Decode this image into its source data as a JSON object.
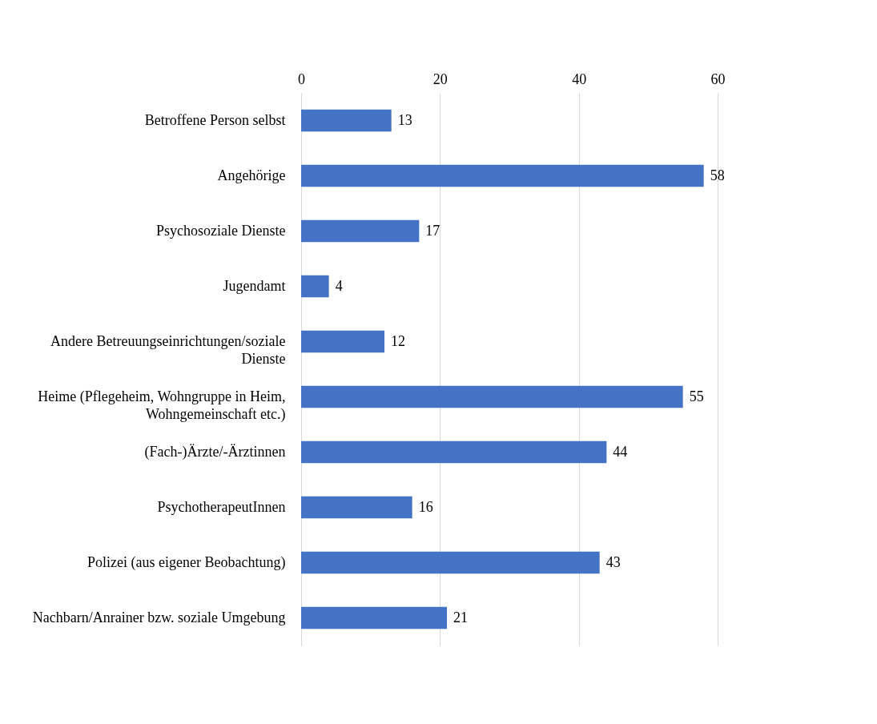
{
  "chart_data": {
    "type": "bar",
    "orientation": "horizontal",
    "categories": [
      "Betroffene Person selbst",
      "Angehörige",
      "Psychosoziale Dienste",
      "Jugendamt",
      "Andere Betreuungseinrichtungen/soziale Dienste",
      "Heime (Pflegeheim, Wohngruppe in Heim, Wohngemeinschaft etc.)",
      "(Fach-)Ärzte/-Ärztinnen",
      "PsychotherapeutInnen",
      "Polizei (aus eigener Beobachtung)",
      "Nachbarn/Anrainer bzw. soziale Umgebung"
    ],
    "values": [
      13,
      58,
      17,
      4,
      12,
      55,
      44,
      16,
      43,
      21
    ],
    "color": "#4472c4",
    "xlim": [
      0,
      60
    ],
    "xticks": [
      0,
      20,
      40,
      60
    ],
    "grid": "x",
    "data_labels": true
  }
}
